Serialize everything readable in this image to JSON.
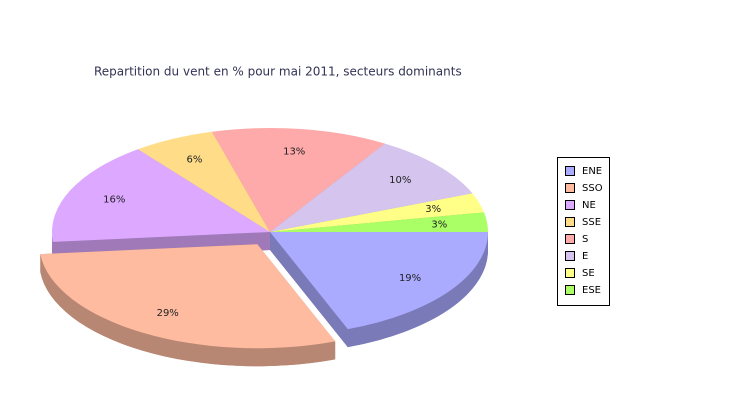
{
  "chart_data": {
    "type": "pie3d",
    "title": "Repartition du vent en % pour mai 2011, secteurs dominants",
    "categories": [
      "ENE",
      "SSO",
      "NE",
      "SSE",
      "S",
      "E",
      "SE",
      "ESE"
    ],
    "values": [
      19,
      29,
      16,
      6,
      13,
      10,
      3,
      3
    ],
    "value_labels": [
      "19%",
      "29%",
      "16%",
      "6%",
      "13%",
      "10%",
      "3%",
      "3%"
    ],
    "colors": [
      "#aaaaff",
      "#ffbba0",
      "#dda8ff",
      "#ffdd88",
      "#ffaaaa",
      "#d4c4ee",
      "#ffff88",
      "#aaff66"
    ],
    "exploded_category": "SSO",
    "legend": "right"
  }
}
